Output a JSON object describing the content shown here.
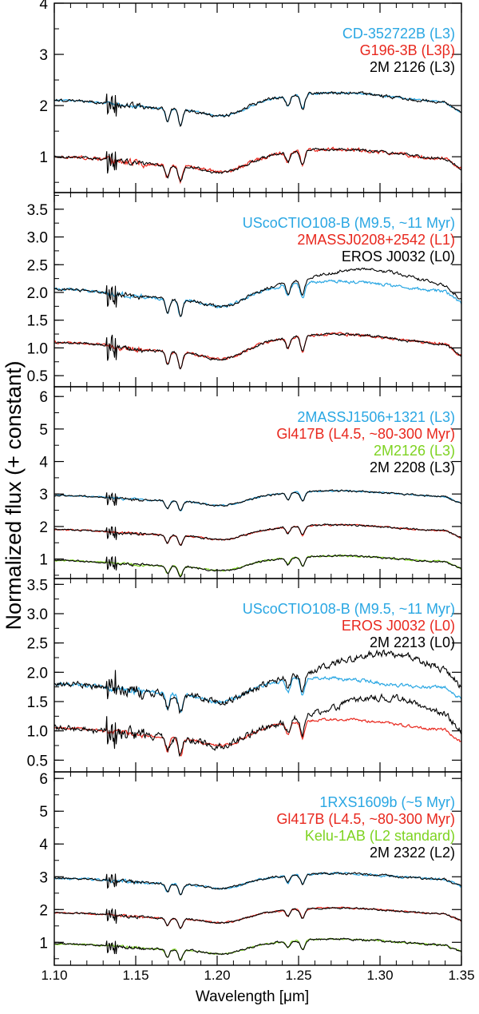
{
  "figure": {
    "ylabel": "Normalized flux   (+ constant)",
    "xlabel": "Wavelength [μm]"
  },
  "colors": {
    "axis": "#000000",
    "black": "#000000",
    "blue": "#2aa7e3",
    "red": "#e8281e",
    "green": "#7ed321"
  },
  "chart_data": [
    {
      "type": "line",
      "panel": 1,
      "xlim": [
        1.1,
        1.35
      ],
      "ylim": [
        0.3,
        4.0
      ],
      "yticks": [
        1,
        2,
        3,
        4
      ],
      "ytick_labels": [
        "1",
        "2",
        "3",
        "4"
      ],
      "xticks": [
        1.1,
        1.15,
        1.2,
        1.25,
        1.3,
        1.35
      ],
      "legend": [
        {
          "label": "CD-352722B (L3)",
          "color": "blue"
        },
        {
          "label": "G196-3B (L3β)",
          "color": "red"
        },
        {
          "label": "2M 2126 (L3)",
          "color": "black"
        }
      ],
      "series": [
        {
          "name": "CD-352722B (L3)",
          "color": "blue",
          "offset": 2.0,
          "profile": "A",
          "noise": 0.04
        },
        {
          "name": "2M 2126 (L3)",
          "color": "black",
          "offset": 2.0,
          "profile": "A",
          "noise": 0.07
        },
        {
          "name": "G196-3B (L3β)",
          "color": "red",
          "offset": 0.9,
          "profile": "A",
          "noise": 0.08
        },
        {
          "name": "2M 2126 (L3)",
          "color": "black",
          "offset": 0.9,
          "profile": "A",
          "noise": 0.06
        }
      ]
    },
    {
      "type": "line",
      "panel": 2,
      "xlim": [
        1.1,
        1.35
      ],
      "ylim": [
        0.3,
        3.8
      ],
      "yticks": [
        0.5,
        1.0,
        1.5,
        2.0,
        2.5,
        3.0,
        3.5
      ],
      "ytick_labels": [
        "0.5",
        "1.0",
        "1.5",
        "2.0",
        "2.5",
        "3.0",
        "3.5"
      ],
      "xticks": [
        1.1,
        1.15,
        1.2,
        1.25,
        1.3,
        1.35
      ],
      "legend": [
        {
          "label": "UScoCTIO108-B (M9.5, ~11 Myr)",
          "color": "blue"
        },
        {
          "label": "2MASSJ0208+2542 (L1)",
          "color": "red"
        },
        {
          "label": "EROS J0032 (L0)",
          "color": "black"
        }
      ],
      "series": [
        {
          "name": "UScoCTIO108-B (M9.5, ~11 Myr)",
          "color": "blue",
          "offset": 1.95,
          "profile": "B",
          "noise": 0.06
        },
        {
          "name": "EROS J0032 (L0)",
          "color": "black",
          "offset": 1.95,
          "profile": "B2",
          "noise": 0.06
        },
        {
          "name": "2MASSJ0208+2542 (L1)",
          "color": "red",
          "offset": 1.0,
          "profile": "B",
          "noise": 0.06
        },
        {
          "name": "EROS J0032 (L0)",
          "color": "black",
          "offset": 1.0,
          "profile": "B",
          "noise": 0.05
        }
      ]
    },
    {
      "type": "line",
      "panel": 3,
      "xlim": [
        1.1,
        1.35
      ],
      "ylim": [
        0.4,
        6.3
      ],
      "yticks": [
        1,
        2,
        3,
        4,
        5,
        6
      ],
      "ytick_labels": [
        "1",
        "2",
        "3",
        "4",
        "5",
        "6"
      ],
      "xticks": [
        1.1,
        1.15,
        1.2,
        1.25,
        1.3,
        1.35
      ],
      "legend": [
        {
          "label": "2MASSJ1506+1321 (L3)",
          "color": "blue"
        },
        {
          "label": "Gl417B (L4.5, ~80-300 Myr)",
          "color": "red"
        },
        {
          "label": "2M2126 (L3)",
          "color": "green"
        },
        {
          "label": "2M 2208 (L3)",
          "color": "black"
        }
      ],
      "series": [
        {
          "name": "2MASSJ1506+1321 (L3)",
          "color": "blue",
          "offset": 2.85,
          "profile": "C",
          "noise": 0.05
        },
        {
          "name": "2M 2208 (L3)",
          "color": "black",
          "offset": 2.85,
          "profile": "C",
          "noise": 0.06
        },
        {
          "name": "Gl417B (L4.5, ~80-300 Myr)",
          "color": "red",
          "offset": 1.8,
          "profile": "C",
          "noise": 0.05
        },
        {
          "name": "2M 2208 (L3)",
          "color": "black",
          "offset": 1.8,
          "profile": "C",
          "noise": 0.06
        },
        {
          "name": "2M2126 (L3)",
          "color": "green",
          "offset": 0.85,
          "profile": "C",
          "noise": 0.05
        },
        {
          "name": "2M 2208 (L3)",
          "color": "black",
          "offset": 0.85,
          "profile": "C",
          "noise": 0.06
        }
      ]
    },
    {
      "type": "line",
      "panel": 4,
      "xlim": [
        1.1,
        1.35
      ],
      "ylim": [
        0.3,
        3.6
      ],
      "yticks": [
        0.5,
        1.0,
        1.5,
        2.0,
        2.5,
        3.0,
        3.5
      ],
      "ytick_labels": [
        "0.5",
        "1.0",
        "1.5",
        "2.0",
        "2.5",
        "3.0",
        "3.5"
      ],
      "xticks": [
        1.1,
        1.15,
        1.2,
        1.25,
        1.3,
        1.35
      ],
      "legend": [
        {
          "label": "UScoCTIO108-B (M9.5, ~11 Myr)",
          "color": "blue"
        },
        {
          "label": "EROS J0032 (L0)",
          "color": "red"
        },
        {
          "label": "2M 2213 (L0)",
          "color": "black"
        }
      ],
      "series": [
        {
          "name": "UScoCTIO108-B (M9.5, ~11 Myr)",
          "color": "blue",
          "offset": 1.7,
          "profile": "D1",
          "noise": 0.07
        },
        {
          "name": "2M 2213 (L0)",
          "color": "black",
          "offset": 1.7,
          "profile": "D2",
          "noise": 0.13
        },
        {
          "name": "EROS J0032 (L0)",
          "color": "red",
          "offset": 0.95,
          "profile": "B",
          "noise": 0.05
        },
        {
          "name": "2M 2213 (L0)",
          "color": "black",
          "offset": 0.95,
          "profile": "D3",
          "noise": 0.13
        }
      ]
    },
    {
      "type": "line",
      "panel": 5,
      "xlim": [
        1.1,
        1.35
      ],
      "ylim": [
        0.3,
        6.2
      ],
      "yticks": [
        1,
        2,
        3,
        4,
        5,
        6
      ],
      "ytick_labels": [
        "1",
        "2",
        "3",
        "4",
        "5",
        "6"
      ],
      "xticks": [
        1.1,
        1.15,
        1.2,
        1.25,
        1.3,
        1.35
      ],
      "xtick_labels": [
        "1.10",
        "1.15",
        "1.20",
        "1.25",
        "1.30",
        "1.35"
      ],
      "legend": [
        {
          "label": "1RXS1609b (~5 Myr)",
          "color": "blue"
        },
        {
          "label": "Gl417B (L4.5, ~80-300 Myr)",
          "color": "red"
        },
        {
          "label": "Kelu-1AB (L2 standard)",
          "color": "green"
        },
        {
          "label": "2M 2322 (L2)",
          "color": "black"
        }
      ],
      "series": [
        {
          "name": "1RXS1609b (~5 Myr)",
          "color": "blue",
          "offset": 2.85,
          "profile": "E",
          "noise": 0.08
        },
        {
          "name": "2M 2322 (L2)",
          "color": "black",
          "offset": 2.85,
          "profile": "C",
          "noise": 0.07
        },
        {
          "name": "Gl417B (L4.5, ~80-300 Myr)",
          "color": "red",
          "offset": 1.8,
          "profile": "C",
          "noise": 0.05
        },
        {
          "name": "2M 2322 (L2)",
          "color": "black",
          "offset": 1.8,
          "profile": "C",
          "noise": 0.06
        },
        {
          "name": "Kelu-1AB (L2 standard)",
          "color": "green",
          "offset": 0.85,
          "profile": "C",
          "noise": 0.05
        },
        {
          "name": "2M 2322 (L2)",
          "color": "black",
          "offset": 0.85,
          "profile": "C",
          "noise": 0.07
        }
      ]
    }
  ]
}
